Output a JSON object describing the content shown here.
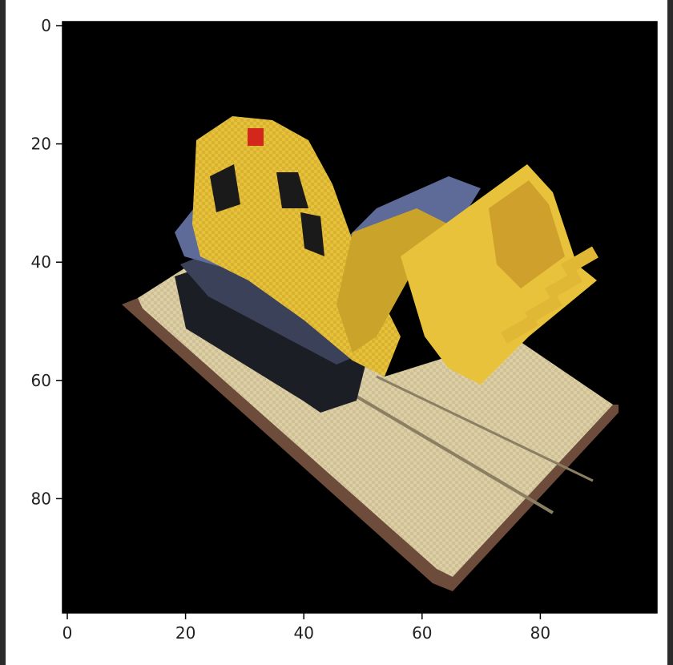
{
  "figure": {
    "image_description_note": "",
    "x_ticks": [
      {
        "value": 0,
        "label": "0"
      },
      {
        "value": 20,
        "label": "20"
      },
      {
        "value": 40,
        "label": "40"
      },
      {
        "value": 60,
        "label": "60"
      },
      {
        "value": 80,
        "label": "80"
      }
    ],
    "y_ticks": [
      {
        "value": 0,
        "label": "0"
      },
      {
        "value": 20,
        "label": "20"
      },
      {
        "value": 40,
        "label": "40"
      },
      {
        "value": 60,
        "label": "60"
      },
      {
        "value": 80,
        "label": "80"
      }
    ],
    "x_range": [
      0,
      100
    ],
    "y_range": [
      0,
      100
    ],
    "colors": {
      "background": "#000000",
      "bulldozer_yellow": "#e8c23a",
      "bulldozer_dark_yellow": "#b89020",
      "base_top": "#d9cba0",
      "base_edge": "#6e4c3c",
      "tracks": "#2a2d38",
      "track_blue": "#6f7aa8",
      "red_light": "#d4271c"
    }
  }
}
